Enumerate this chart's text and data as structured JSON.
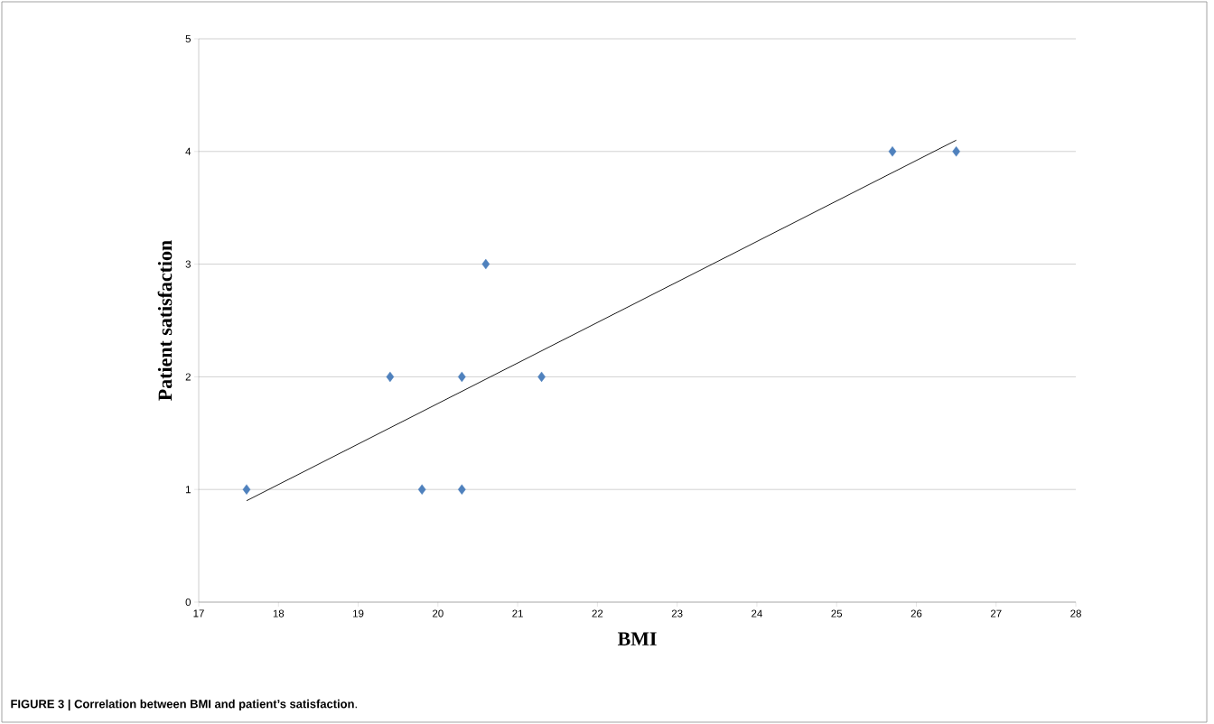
{
  "chart_data": {
    "type": "scatter",
    "xlabel": "BMI",
    "ylabel": "Patient satisfaction",
    "xlim": [
      17,
      28
    ],
    "xticks": [
      17,
      18,
      19,
      20,
      21,
      22,
      23,
      24,
      25,
      26,
      27,
      28
    ],
    "ylim": [
      0,
      5
    ],
    "yticks": [
      0,
      1,
      2,
      3,
      4,
      5
    ],
    "grid": "y",
    "marker": "diamond",
    "series": [
      {
        "color": "#4f81bd",
        "x": [
          17.6,
          19.4,
          19.8,
          20.3,
          20.3,
          20.6,
          21.3,
          25.7,
          26.5
        ],
        "values": [
          1,
          2,
          1,
          1,
          2,
          3,
          2,
          4,
          4
        ]
      },
      {
        "type": "line",
        "marker": "none",
        "color": "#000000",
        "x": [
          17.6,
          26.5
        ],
        "values": [
          0.9,
          4.1
        ]
      }
    ],
    "annotations": [
      "**FIGURE 3 | Correlation between BMI and patient’s satisfaction**."
    ]
  }
}
